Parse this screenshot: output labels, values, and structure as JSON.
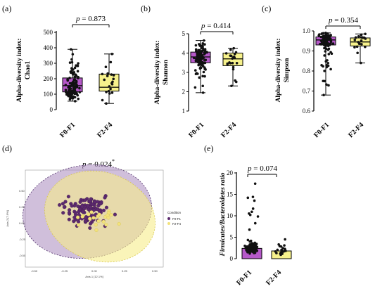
{
  "chart_data": [
    {
      "panel": "(a)",
      "type": "box",
      "ylabel_line1": "Alpha-diversity index:",
      "ylabel_line2": "Chao1",
      "ylim": [
        0,
        500
      ],
      "yticks": [
        "0",
        "100",
        "200",
        "300",
        "400",
        "500"
      ],
      "p_prefix": "p",
      "p_value": "= 0.873",
      "colors": [
        "#b659c9",
        "#f7f28c"
      ],
      "groups": [
        {
          "name": "F0-F1",
          "min": 55,
          "q1": 115,
          "median": 155,
          "q3": 205,
          "max": 390
        },
        {
          "name": "F2-F4",
          "min": 40,
          "q1": 120,
          "median": 145,
          "q3": 230,
          "max": 360
        }
      ]
    },
    {
      "panel": "(b)",
      "type": "box",
      "ylabel_line1": "Alpha-diversity index:",
      "ylabel_line2": "Shannon",
      "ylim": [
        1,
        5
      ],
      "yticks": [
        "1",
        "2",
        "3",
        "4",
        "5"
      ],
      "p_prefix": "p",
      "p_value": "= 0.414",
      "colors": [
        "#b659c9",
        "#f7f28c"
      ],
      "groups": [
        {
          "name": "F0-F1",
          "min": 1.95,
          "q1": 3.5,
          "median": 3.8,
          "q3": 4.05,
          "max": 4.65
        },
        {
          "name": "F2-F4",
          "min": 2.3,
          "q1": 3.35,
          "median": 3.7,
          "q3": 4.0,
          "max": 4.25
        }
      ]
    },
    {
      "panel": "(c)",
      "type": "box",
      "ylabel_line1": "Alpha-diversity index:",
      "ylabel_line2": "Simpson",
      "ylim": [
        0.6,
        1.0
      ],
      "yticks": [
        "0.6",
        "0.7",
        "0.8",
        "0.9",
        "1.0"
      ],
      "p_prefix": "p",
      "p_value": "= 0.354",
      "colors": [
        "#b659c9",
        "#f7f28c"
      ],
      "groups": [
        {
          "name": "F0-F1",
          "min": 0.68,
          "q1": 0.93,
          "median": 0.955,
          "q3": 0.97,
          "max": 0.99
        },
        {
          "name": "F2-F4",
          "min": 0.84,
          "q1": 0.925,
          "median": 0.945,
          "q3": 0.965,
          "max": 0.985
        }
      ]
    },
    {
      "panel": "(d)",
      "type": "scatter",
      "p_prefix": "p",
      "p_value": "= 0.024",
      "p_mark": "*",
      "xlabel": "Axis.1 [12.1%]",
      "ylabel": "Axis.2 [7.9%]",
      "legend_title": "Condition",
      "legend_entries": [
        "F0-F1",
        "F2-F4"
      ],
      "colors": [
        "#5c2a6e",
        "#f2e27a"
      ],
      "xticks": [
        "-0.50",
        "-0.25",
        "0.00",
        "0.25",
        "0.50"
      ],
      "yticks": [
        "0.50",
        "0.25",
        "0.00",
        "-0.25",
        "-0.50"
      ]
    },
    {
      "panel": "(e)",
      "type": "bar",
      "ylabel": "Firmicutes/Bacteroidetes ratio",
      "ylim": [
        0,
        20
      ],
      "yticks": [
        "0",
        "5",
        "10",
        "15",
        "20"
      ],
      "p_prefix": "p",
      "p_value": "= 0.074",
      "colors": [
        "#b659c9",
        "#f7f28c"
      ],
      "groups": [
        {
          "name": "F0-F1",
          "value": 2.4
        },
        {
          "name": "F2-F4",
          "value": 1.8
        }
      ]
    }
  ]
}
